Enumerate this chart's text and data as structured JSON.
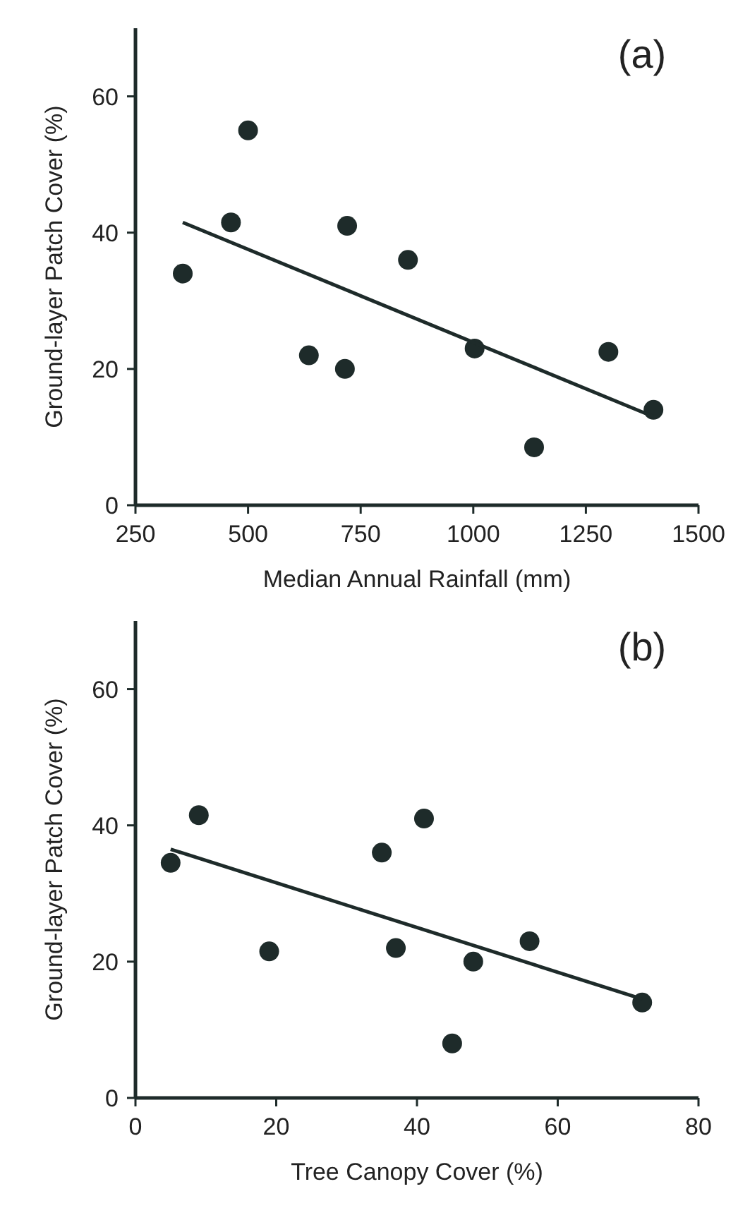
{
  "chart_data": [
    {
      "type": "scatter",
      "xlabel": "Median Annual Rainfall (mm)",
      "ylabel": "Ground-layer Patch Cover (%)",
      "annotations": [
        "(a)"
      ],
      "xlim": [
        250,
        1500
      ],
      "xticks": [
        250,
        500,
        750,
        1000,
        1250,
        1500
      ],
      "ylim": [
        0,
        70
      ],
      "yticks": [
        0,
        20,
        40,
        60
      ],
      "grid": false,
      "series": [
        {
          "color": "#1e2b2a",
          "marker": "circle",
          "x": [
            355,
            462,
            500,
            635,
            715,
            720,
            855,
            1003,
            1135,
            1300,
            1400
          ],
          "values": [
            34,
            41.5,
            55,
            22,
            20,
            41,
            36,
            23,
            8.5,
            22.5,
            14
          ]
        },
        {
          "type": "line",
          "color": "#1e2b2a",
          "x": [
            355,
            1400
          ],
          "values": [
            41.5,
            13
          ]
        }
      ]
    },
    {
      "type": "scatter",
      "xlabel": "Tree Canopy Cover (%)",
      "ylabel": "Ground-layer Patch Cover (%)",
      "annotations": [
        "(b)"
      ],
      "xlim": [
        0,
        80
      ],
      "xticks": [
        0,
        20,
        40,
        60,
        80
      ],
      "ylim": [
        0,
        70
      ],
      "yticks": [
        0,
        20,
        40,
        60
      ],
      "grid": false,
      "series": [
        {
          "color": "#1e2b2a",
          "marker": "circle",
          "x": [
            5,
            9,
            19,
            35,
            37,
            41,
            45,
            48,
            56,
            72
          ],
          "values": [
            34.5,
            41.5,
            21.5,
            36,
            22,
            41,
            8,
            20,
            23,
            14
          ]
        },
        {
          "type": "line",
          "color": "#1e2b2a",
          "x": [
            5,
            72
          ],
          "values": [
            36.5,
            14.5
          ]
        }
      ]
    }
  ]
}
